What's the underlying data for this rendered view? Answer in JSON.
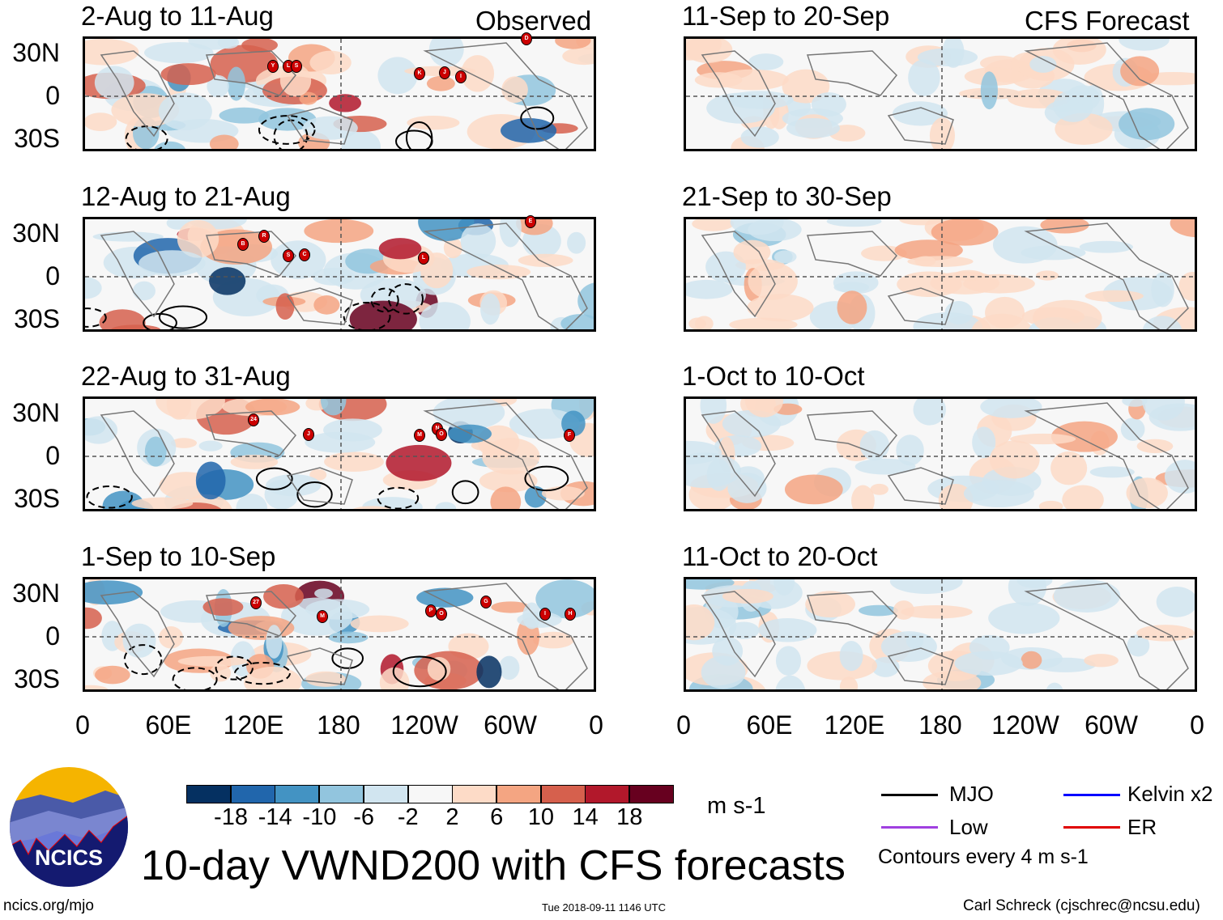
{
  "left_header": "Observed",
  "right_header": "CFS Forecast",
  "panels_left": [
    {
      "title": "2-Aug to 11-Aug",
      "storms": [
        "Y",
        "L",
        "S",
        "K",
        "J",
        "I",
        "D"
      ]
    },
    {
      "title": "12-Aug to 21-Aug",
      "storms": [
        "B",
        "R",
        "S",
        "C",
        "L",
        "E"
      ]
    },
    {
      "title": "22-Aug to 31-Aug",
      "storms": [
        "24",
        "J",
        "M",
        "N",
        "O",
        "F"
      ]
    },
    {
      "title": "1-Sep to 10-Sep",
      "storms": [
        "27",
        "M",
        "P",
        "O",
        "G",
        "I",
        "H"
      ]
    }
  ],
  "panels_right": [
    {
      "title": "11-Sep to 20-Sep"
    },
    {
      "title": "21-Sep to 30-Sep"
    },
    {
      "title": "1-Oct to 10-Oct"
    },
    {
      "title": "11-Oct to 20-Oct"
    }
  ],
  "y_ticks": [
    "30N",
    "0",
    "30S"
  ],
  "x_ticks": [
    "0",
    "60E",
    "120E",
    "180",
    "120W",
    "60W",
    "0"
  ],
  "colorbar": {
    "colors": [
      "#053061",
      "#2166ac",
      "#4393c3",
      "#92c5de",
      "#d1e5f0",
      "#f7f7f7",
      "#fddbc7",
      "#f4a582",
      "#d6604d",
      "#b2182b",
      "#67001f"
    ],
    "labels": [
      "-18",
      "-14",
      "-10",
      "-6",
      "-2",
      "2",
      "6",
      "10",
      "14",
      "18"
    ],
    "units": "m s-1"
  },
  "legend": {
    "items": [
      {
        "label": "MJO",
        "color": "#000000"
      },
      {
        "label": "Kelvin x2",
        "color": "#0000ff"
      },
      {
        "label": "Low",
        "color": "#a040e0"
      },
      {
        "label": "ER",
        "color": "#e00000"
      }
    ],
    "note": "Contours every 4 m s-1"
  },
  "logo_text": "NCICS",
  "main_title": "10-day VWND200 with CFS forecasts",
  "footer": {
    "url": "ncics.org/mjo",
    "timestamp": "Tue 2018-09-11 1146 UTC",
    "author": "Carl Schreck (cjschrec@ncsu.edu)"
  }
}
